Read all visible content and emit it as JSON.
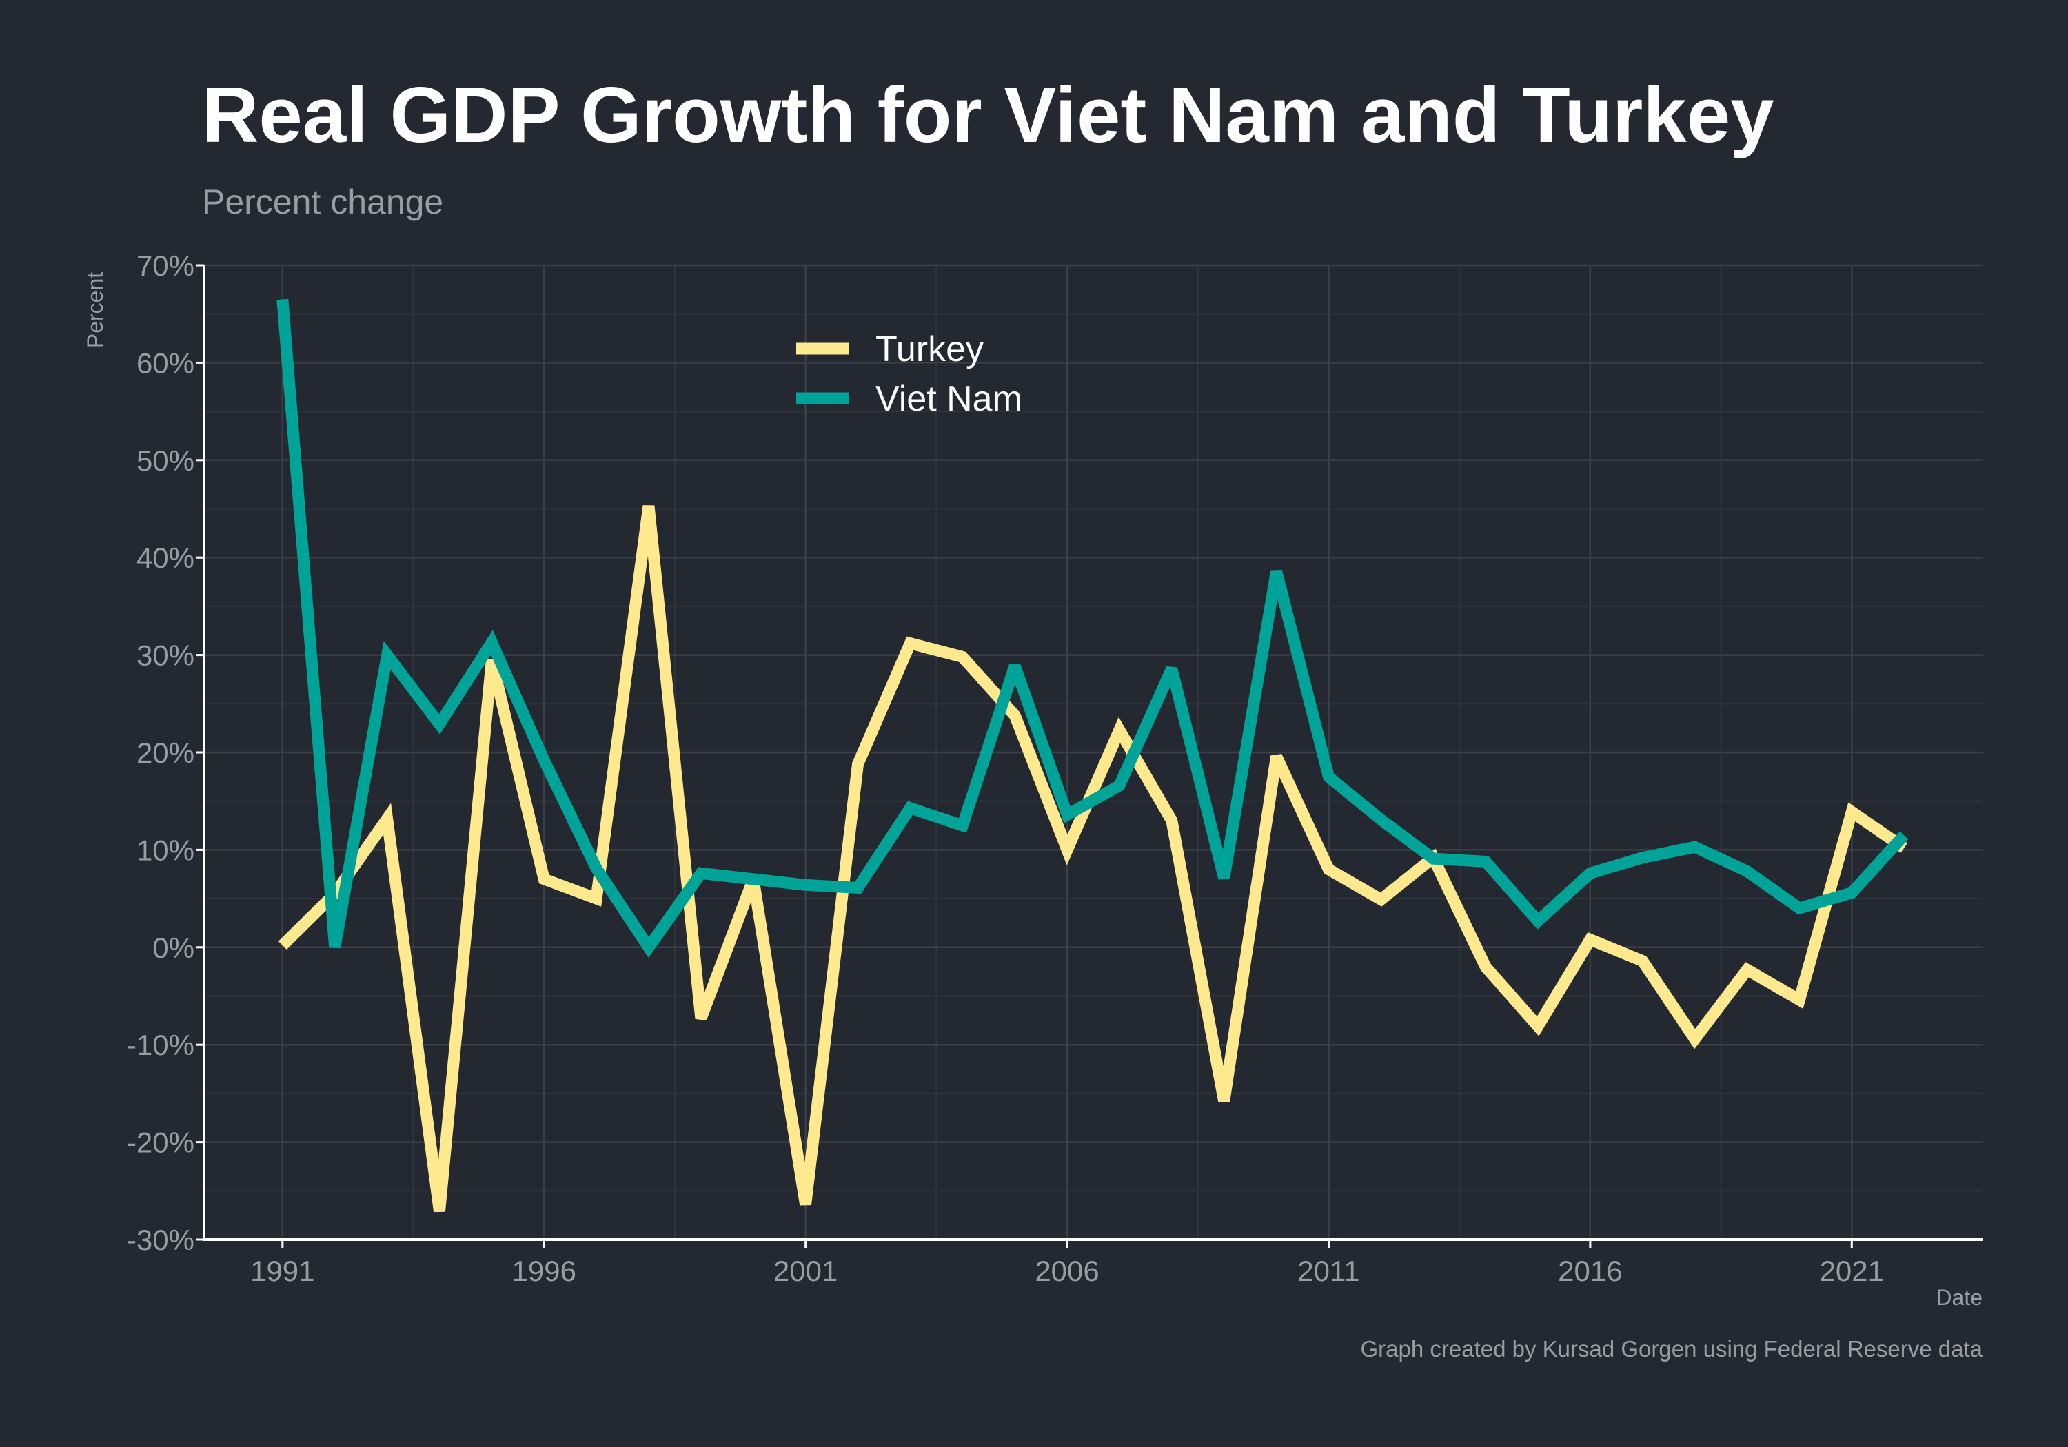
{
  "chart_data": {
    "type": "line",
    "title": "Real GDP Growth for Viet Nam and Turkey",
    "subtitle": "Percent change",
    "xlabel": "Date",
    "ylabel": "Percent",
    "caption": "Graph created by Kursad Gorgen using Federal Reserve data",
    "xlim": [
      1989.5,
      2023.5
    ],
    "ylim": [
      -30,
      70
    ],
    "x_ticks": [
      1991,
      1996,
      2001,
      2006,
      2011,
      2016,
      2021
    ],
    "x_tick_labels": [
      "1991",
      "1996",
      "2001",
      "2006",
      "2011",
      "2016",
      "2021"
    ],
    "y_ticks": [
      -30,
      -20,
      -10,
      0,
      10,
      20,
      30,
      40,
      50,
      60,
      70
    ],
    "y_tick_labels": [
      "-30%",
      "-20%",
      "-10%",
      "0%",
      "10%",
      "20%",
      "30%",
      "40%",
      "50%",
      "60%",
      "70%"
    ],
    "grid": true,
    "legend_position": "top-center",
    "x": [
      1991,
      1992,
      1993,
      1994,
      1995,
      1996,
      1997,
      1998,
      1999,
      2000,
      2001,
      2002,
      2003,
      2004,
      2005,
      2006,
      2007,
      2008,
      2009,
      2010,
      2011,
      2012,
      2013,
      2014,
      2015,
      2016,
      2017,
      2018,
      2019,
      2020,
      2021,
      2022
    ],
    "series": [
      {
        "name": "Turkey",
        "color": "#ffe98f",
        "values": [
          0.2,
          5.5,
          13.2,
          -27.1,
          29.5,
          7.0,
          5.0,
          45.3,
          -7.3,
          7.0,
          -26.4,
          18.8,
          31.2,
          29.8,
          23.8,
          10.0,
          22.3,
          13.0,
          -15.8,
          19.6,
          8.0,
          4.9,
          9.2,
          -2.0,
          -8.1,
          0.8,
          -1.4,
          -9.4,
          -2.3,
          -5.4,
          13.9,
          10.2
        ]
      },
      {
        "name": "Viet Nam",
        "color": "#00a398",
        "values": [
          66.5,
          0.0,
          30.0,
          22.9,
          31.3,
          19.2,
          8.1,
          0.0,
          7.6,
          7.0,
          6.4,
          6.1,
          14.3,
          12.5,
          28.9,
          13.6,
          16.6,
          28.6,
          7.1,
          38.6,
          17.5,
          13.1,
          9.1,
          8.8,
          2.7,
          7.6,
          9.2,
          10.3,
          7.8,
          4.0,
          5.6,
          11.5
        ]
      }
    ]
  }
}
